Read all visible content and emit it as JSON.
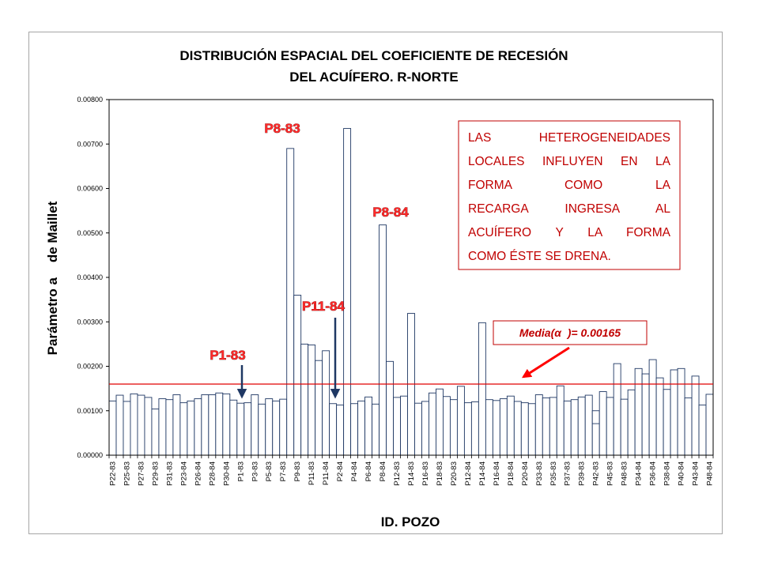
{
  "chart_data": {
    "type": "bar",
    "title": "DISTRIBUCIÓN ESPACIAL DEL COEFICIENTE DE RECESIÓN",
    "subtitle": "DEL ACUÍFERO. R-NORTE",
    "xlabel": "ID. POZO",
    "ylabel": "Parámetro a    de Maillet",
    "ylim": [
      0,
      0.008
    ],
    "yticks": [
      "0.00000",
      "0.00100",
      "0.00200",
      "0.00300",
      "0.00400",
      "0.00500",
      "0.00600",
      "0.00700",
      "0.00800"
    ],
    "categories": [
      "P22-83",
      "",
      "P25-83",
      "",
      "P27-83",
      "",
      "P29-83",
      "",
      "P31-83",
      "",
      "P23-84",
      "",
      "P26-84",
      "",
      "P28-84",
      "",
      "P30-84",
      "",
      "P1-83",
      "",
      "P3-83",
      "",
      "P5-83",
      "",
      "P7-83",
      "",
      "P9-83",
      "",
      "P11-83",
      "",
      "P11-84",
      "",
      "P2-84",
      "",
      "P4-84",
      "",
      "P6-84",
      "",
      "P8-84",
      "",
      "P12-83",
      "",
      "P14-83",
      "",
      "P16-83",
      "",
      "P18-83",
      "",
      "P20-83",
      "",
      "P12-84",
      "",
      "P14-84",
      "",
      "P16-84",
      "",
      "P18-84",
      "",
      "P20-84",
      "",
      "P33-83",
      "",
      "P35-83",
      "",
      "P37-83",
      "",
      "P39-83",
      "",
      "P42-83",
      "",
      "P45-83",
      "",
      "P48-83",
      "",
      "P34-84",
      "",
      "P36-84",
      "",
      "P38-84",
      "",
      "P40-84",
      "",
      "P43-84",
      "",
      "P48-84"
    ],
    "values": [
      0.00122,
      0.00135,
      0.00121,
      0.00138,
      0.00135,
      0.0013,
      0.00104,
      0.00127,
      0.00125,
      0.00136,
      0.00118,
      0.00122,
      0.00127,
      0.00136,
      0.00136,
      0.0014,
      0.00138,
      0.00124,
      0.00117,
      0.00118,
      0.00136,
      0.00115,
      0.00127,
      0.00122,
      0.00126,
      0.0069,
      0.0036,
      0.0025,
      0.00248,
      0.00213,
      0.00235,
      0.00116,
      0.00113,
      0.00735,
      0.00116,
      0.00122,
      0.00131,
      0.00115,
      0.00518,
      0.00211,
      0.0013,
      0.00133,
      0.00319,
      0.00117,
      0.00121,
      0.0014,
      0.00149,
      0.00132,
      0.00125,
      0.00155,
      0.00118,
      0.0012,
      0.00298,
      0.00125,
      0.00123,
      0.00127,
      0.00133,
      0.00121,
      0.00118,
      0.00116,
      0.00136,
      0.00129,
      0.0013,
      0.00156,
      0.00122,
      0.00125,
      0.00131,
      0.00135,
      0.001,
      0.00143,
      0.0013,
      0.00206,
      0.00126,
      0.00147,
      0.00195,
      0.00183,
      0.00215,
      0.00174,
      0.00148,
      0.00192,
      0.00195,
      0.00129,
      0.00178,
      0.00113,
      0.00137
    ],
    "inner_markers": [
      {
        "index": 68,
        "value": 0.00071
      }
    ],
    "mean": 0.0016,
    "mean_label": "Media(α  )= 0.00165",
    "annotations": [
      {
        "text": "P8-83",
        "target_index": 25
      },
      {
        "text": "P8-84",
        "target_index": 38
      },
      {
        "text": "P11-84",
        "target_index": 31
      },
      {
        "text": "P1-83",
        "target_index": 18
      }
    ],
    "note": [
      "LAS HETEROGENEIDADES",
      "LOCALES INFLUYEN EN LA",
      "FORMA COMO LA",
      "RECARGA INGRESA AL",
      "ACUÍFERO Y LA FORMA",
      "COMO ÉSTE SE DRENA."
    ],
    "grid": false,
    "legend": "none",
    "colors": {
      "bar_fill": "#ffffff",
      "bar_stroke": "#1f3864",
      "mean_line": "#e00000",
      "callout": "#ff2a2a",
      "note": "#c00000",
      "arrow_dark": "#1f3864",
      "arrow_red": "#ff0000"
    }
  }
}
